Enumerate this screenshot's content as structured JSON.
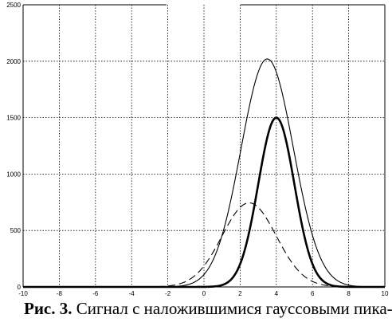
{
  "chart_data": {
    "type": "line",
    "title": "",
    "xlabel": "",
    "ylabel": "",
    "xlim": [
      -10,
      10
    ],
    "ylim": [
      0,
      2500
    ],
    "x_ticks": [
      "-10",
      "-8",
      "-6",
      "-4",
      "-2",
      "0",
      "2",
      "4",
      "6",
      "8",
      "10"
    ],
    "y_ticks": [
      "0",
      "500",
      "1000",
      "1500",
      "2000",
      "2500"
    ],
    "grid": true,
    "series": [
      {
        "style": "solid-thin",
        "peak_x": 3.5,
        "peak_y": 2020,
        "sigma": 1.45
      },
      {
        "style": "solid-thick",
        "peak_x": 4.0,
        "peak_y": 1500,
        "sigma": 1.0
      },
      {
        "style": "dashed",
        "peak_x": 2.5,
        "peak_y": 745,
        "sigma": 1.5
      }
    ]
  },
  "caption": {
    "label": "Рис. 3.",
    "text": "Сигнал с наложившимися гауссовыми пика-"
  }
}
